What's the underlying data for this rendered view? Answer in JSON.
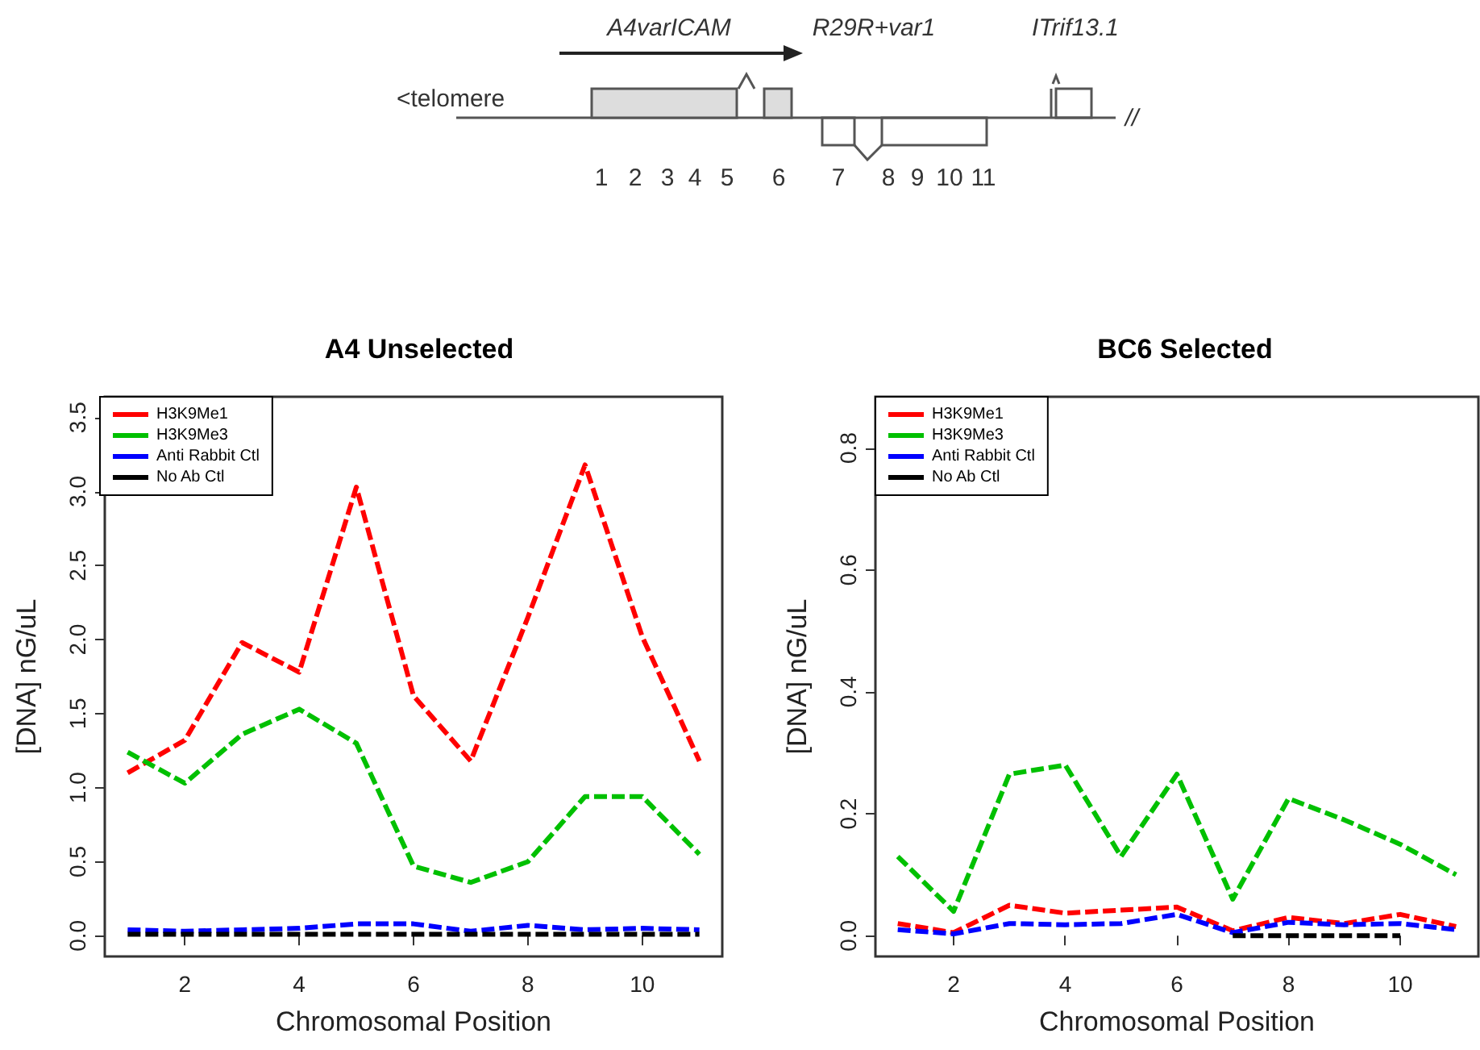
{
  "chart_data": [
    {
      "type": "other",
      "annotations": [
        "A4varICAM",
        "R29R+var1",
        "ITrif13.1",
        "<telomere",
        "1",
        "2",
        "3",
        "4",
        "5",
        "6",
        "7",
        "8",
        "9",
        "10",
        "11",
        "//"
      ]
    },
    {
      "type": "line",
      "title": "A4 Unselected",
      "xlabel": "Chromosomal Position",
      "ylabel": "[DNA] nG/uL",
      "x": [
        1,
        2,
        3,
        4,
        5,
        6,
        7,
        8,
        9,
        10,
        11
      ],
      "xlim": [
        0.6,
        11.4
      ],
      "xticks": [
        2,
        4,
        6,
        8,
        10
      ],
      "ylim": [
        -0.14,
        3.64
      ],
      "yticks": [
        {
          "value": 0,
          "label": "0.0"
        },
        {
          "value": 0.5,
          "label": "0.5"
        },
        {
          "value": 1,
          "label": "1.0"
        },
        {
          "value": 1.5,
          "label": "1.5"
        },
        {
          "value": 2,
          "label": "2.0"
        },
        {
          "value": 2.5,
          "label": "2.5"
        },
        {
          "value": 3,
          "label": "3.0"
        },
        {
          "value": 3.5,
          "label": "3.5"
        }
      ],
      "series": [
        {
          "name": "H3K9Me1",
          "color": "#ff0000",
          "values": [
            1.1,
            1.32,
            1.98,
            1.78,
            3.03,
            1.62,
            1.18,
            2.15,
            3.18,
            2.02,
            1.18
          ]
        },
        {
          "name": "H3K9Me3",
          "color": "#00c000",
          "values": [
            1.24,
            1.03,
            1.36,
            1.53,
            1.3,
            0.47,
            0.36,
            0.5,
            0.94,
            0.94,
            0.55
          ]
        },
        {
          "name": "Anti Rabbit Ctl",
          "color": "#0000ff",
          "values": [
            0.04,
            0.03,
            0.04,
            0.05,
            0.08,
            0.08,
            0.03,
            0.07,
            0.04,
            0.05,
            0.04
          ]
        },
        {
          "name": "No Ab Ctl",
          "color": "#000000",
          "values": [
            0.01,
            0.01,
            0.01,
            0.01,
            0.01,
            0.01,
            0.01,
            0.01,
            0.01,
            0.01,
            0.01
          ]
        }
      ],
      "grid": false,
      "legend": "top left",
      "marker": "none",
      "line_style": "dashed"
    },
    {
      "type": "line",
      "title": "BC6 Selected",
      "xlabel": "Chromosomal Position",
      "ylabel": "[DNA] nG/uL",
      "x": [
        1,
        2,
        3,
        4,
        5,
        6,
        7,
        8,
        9,
        10,
        11
      ],
      "xlim": [
        0.6,
        11.4
      ],
      "xticks": [
        2,
        4,
        6,
        8,
        10
      ],
      "ylim": [
        -0.034,
        0.884
      ],
      "yticks": [
        {
          "value": 0,
          "label": "0.0"
        },
        {
          "value": 0.2,
          "label": "0.2"
        },
        {
          "value": 0.4,
          "label": "0.4"
        },
        {
          "value": 0.6,
          "label": "0.6"
        },
        {
          "value": 0.8,
          "label": "0.8"
        }
      ],
      "series": [
        {
          "name": "H3K9Me1",
          "color": "#ff0000",
          "values": [
            0.02,
            0.005,
            0.05,
            0.037,
            0.042,
            0.047,
            0.008,
            0.03,
            0.02,
            0.035,
            0.015
          ]
        },
        {
          "name": "H3K9Me3",
          "color": "#00c000",
          "values": [
            0.13,
            0.04,
            0.265,
            0.28,
            0.13,
            0.265,
            0.06,
            0.225,
            0.19,
            0.15,
            0.1
          ]
        },
        {
          "name": "Anti Rabbit Ctl",
          "color": "#0000ff",
          "values": [
            0.01,
            0.003,
            0.02,
            0.018,
            0.02,
            0.035,
            0.005,
            0.022,
            0.018,
            0.02,
            0.01
          ]
        },
        {
          "name": "No Ab Ctl",
          "color": "#000000",
          "values": [
            null,
            null,
            null,
            null,
            null,
            null,
            0,
            0,
            0,
            0,
            null
          ]
        }
      ],
      "grid": false,
      "legend": "top left",
      "marker": "none",
      "line_style": "dashed"
    }
  ]
}
